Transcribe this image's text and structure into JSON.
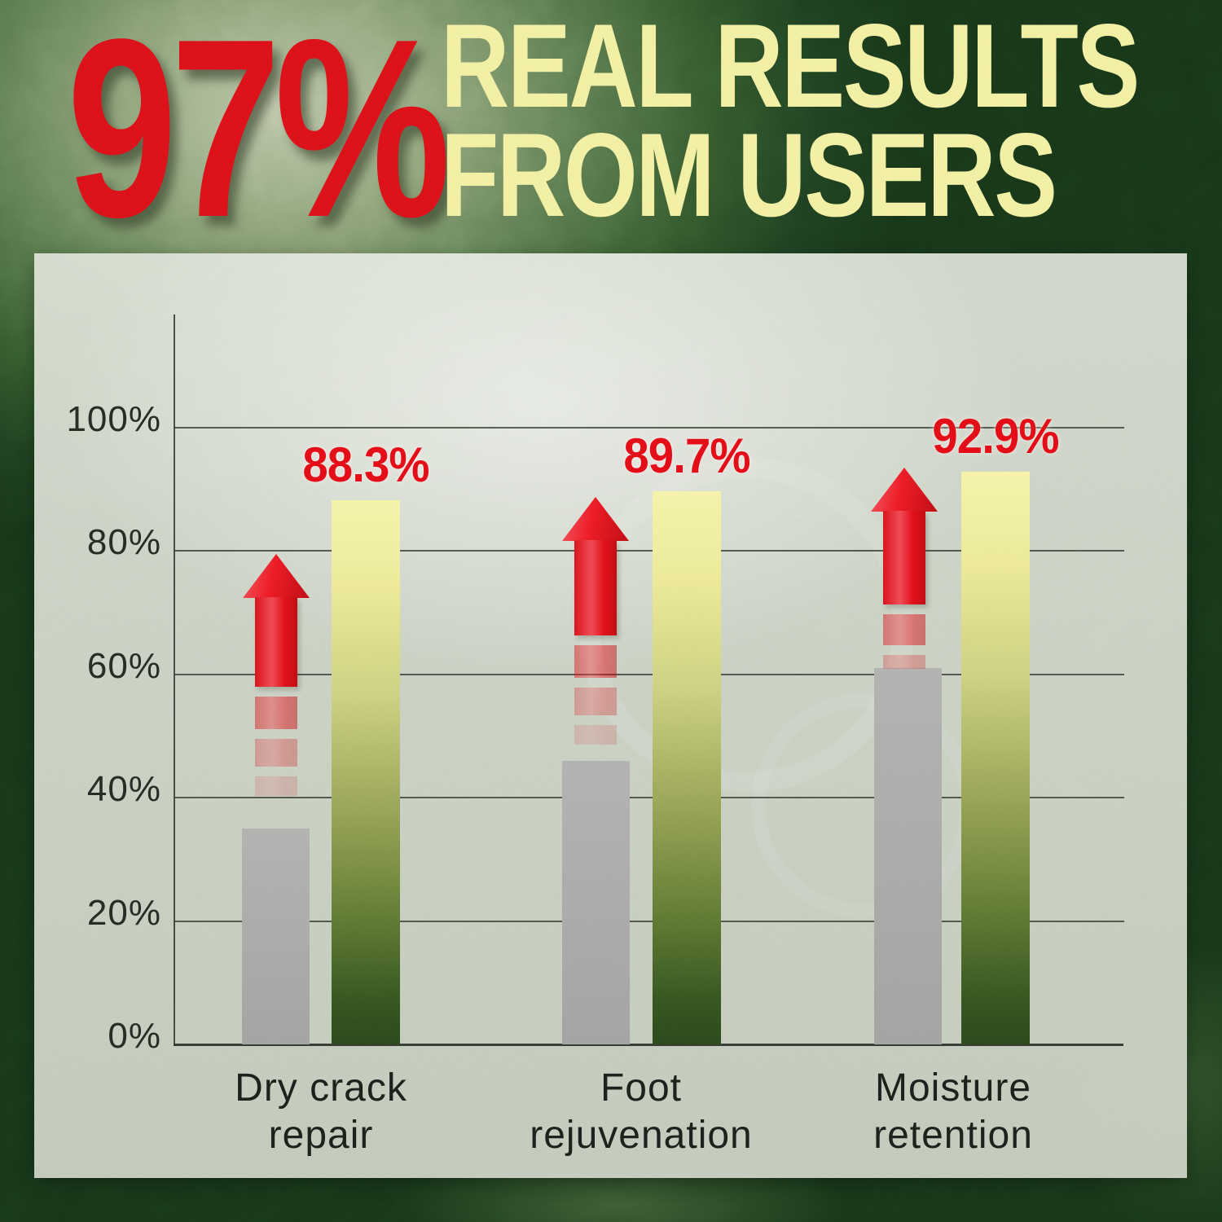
{
  "header": {
    "stat": "97%",
    "title_lines": [
      "REAL RESULTS",
      "FROM USERS"
    ],
    "stat_color": "#dc1119",
    "title_color": "#f2efa3"
  },
  "colors": {
    "accent_red": "#e30d17",
    "pale_yellow": "#f2efa3",
    "gray_bar": "#a8a8a6",
    "gradient_bar_top": "#f5f3a8",
    "gradient_bar_bottom": "#2b481c",
    "panel_background": "#dde2d3",
    "outer_background_dark": "#1e3f20"
  },
  "chart_data": {
    "type": "bar",
    "title": "",
    "categories": [
      "Dry crack repair",
      "Foot rejuvenation",
      "Moisture retention"
    ],
    "category_lines": [
      [
        "Dry crack",
        "repair"
      ],
      [
        "Foot",
        "rejuvenation"
      ],
      [
        "Moisture",
        "retention"
      ]
    ],
    "series": [
      {
        "name": "gray-bars",
        "values": [
          35,
          46,
          61
        ],
        "color": "#a8a8a6"
      },
      {
        "name": "gradient-bars",
        "values": [
          88.3,
          89.7,
          92.9
        ],
        "data_labels": [
          "88.3%",
          "89.7%",
          "92.9%"
        ],
        "gradient": [
          "#f5f3a8",
          "#9aa557",
          "#2b481c"
        ]
      }
    ],
    "y_tick_values": [
      0,
      20,
      40,
      60,
      80,
      100
    ],
    "y_tick_labels": [
      "0%",
      "20%",
      "40%",
      "60%",
      "80%",
      "100%"
    ],
    "ylim": [
      0,
      100
    ],
    "grid": true,
    "legend": false,
    "annotations": {
      "up_arrows": 3,
      "arrow_color": "#ec1c26"
    }
  }
}
